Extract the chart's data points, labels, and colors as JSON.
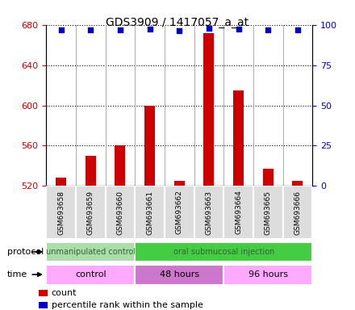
{
  "title": "GDS3909 / 1417057_a_at",
  "samples": [
    "GSM693658",
    "GSM693659",
    "GSM693660",
    "GSM693661",
    "GSM693662",
    "GSM693663",
    "GSM693664",
    "GSM693665",
    "GSM693666"
  ],
  "bar_values": [
    528,
    550,
    560,
    600,
    525,
    672,
    615,
    537,
    525
  ],
  "percentile_values": [
    97,
    97,
    97,
    97.5,
    96.5,
    98,
    97.5,
    97,
    97
  ],
  "ylim_left": [
    520,
    680
  ],
  "ylim_right": [
    0,
    100
  ],
  "yticks_left": [
    520,
    560,
    600,
    640,
    680
  ],
  "yticks_right": [
    0,
    25,
    50,
    75,
    100
  ],
  "bar_color": "#cc0000",
  "dot_color": "#0000cc",
  "protocol_groups": [
    {
      "label": "unmanipulated control",
      "start": 0,
      "end": 3,
      "color": "#aaddaa"
    },
    {
      "label": "oral submucosal injection",
      "start": 3,
      "end": 9,
      "color": "#44cc44"
    }
  ],
  "time_groups": [
    {
      "label": "control",
      "start": 0,
      "end": 3,
      "color": "#ffaaff"
    },
    {
      "label": "48 hours",
      "start": 3,
      "end": 6,
      "color": "#cc77cc"
    },
    {
      "label": "96 hours",
      "start": 6,
      "end": 9,
      "color": "#ffaaff"
    }
  ],
  "legend_items": [
    {
      "label": "count",
      "color": "#cc0000"
    },
    {
      "label": "percentile rank within the sample",
      "color": "#0000cc"
    }
  ],
  "left_axis_color": "#cc0000",
  "right_axis_color": "#0000cc"
}
